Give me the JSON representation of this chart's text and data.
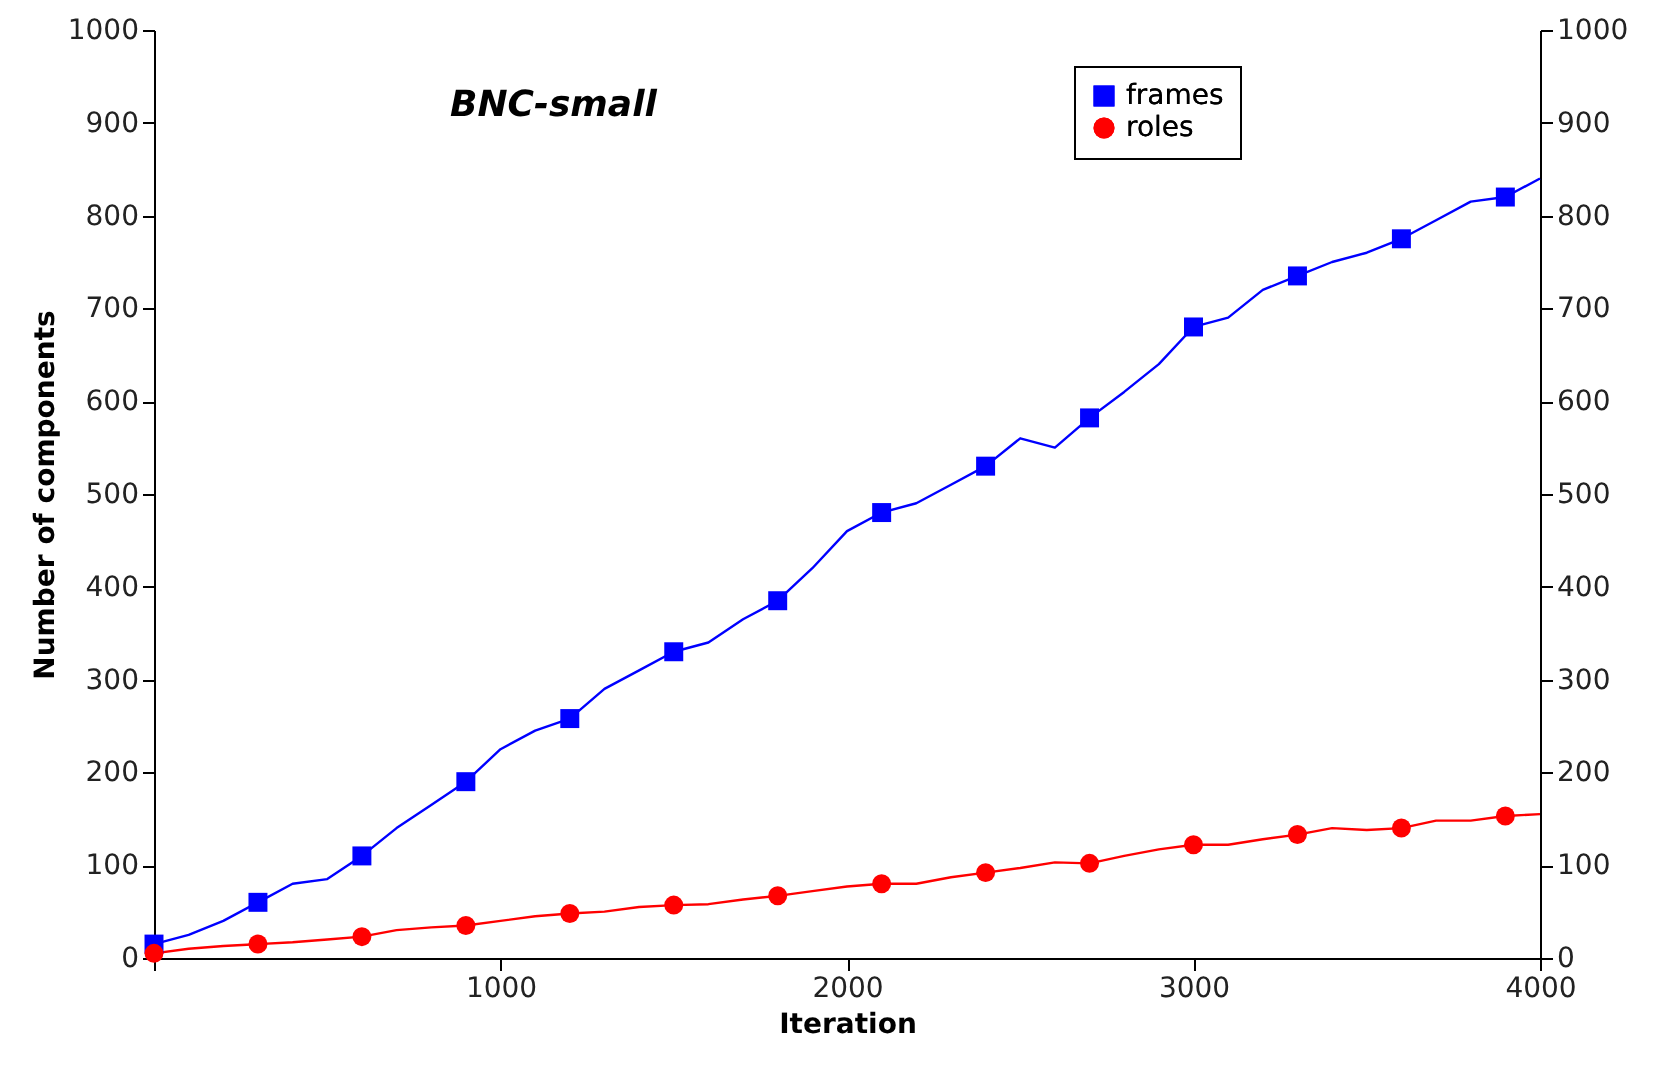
{
  "chart_data": {
    "type": "line",
    "title": "BNC-small",
    "xlabel": "Iteration",
    "ylabel": "Number of components",
    "xlim": [
      0,
      4000
    ],
    "xticks": [
      {
        "value": 0,
        "label": null
      },
      1000,
      2000,
      3000,
      4000
    ],
    "ylim": [
      0,
      1000
    ],
    "yticks": [
      0,
      100,
      200,
      300,
      400,
      500,
      600,
      700,
      800,
      900,
      1000
    ],
    "y2lim": [
      0,
      1000
    ],
    "y2ticks": [
      0,
      100,
      200,
      300,
      400,
      500,
      600,
      700,
      800,
      900,
      1000
    ],
    "grid": false,
    "legend": "top right",
    "line_style": "solid",
    "series": [
      {
        "name": "frames",
        "color": "#0000ff",
        "x": [
          0,
          100,
          200,
          300,
          400,
          500,
          600,
          700,
          800,
          900,
          1000,
          1100,
          1200,
          1300,
          1400,
          1500,
          1600,
          1700,
          1800,
          1900,
          2000,
          2100,
          2200,
          2300,
          2400,
          2500,
          2600,
          2700,
          2800,
          2900,
          3000,
          3100,
          3200,
          3300,
          3400,
          3500,
          3600,
          3700,
          3800,
          3900,
          4000
        ],
        "values": [
          15,
          25,
          40,
          60,
          80,
          85,
          110,
          140,
          165,
          190,
          225,
          245,
          258,
          290,
          310,
          330,
          340,
          365,
          385,
          420,
          460,
          480,
          490,
          510,
          530,
          560,
          550,
          582,
          610,
          640,
          680,
          690,
          720,
          735,
          750,
          760,
          775,
          795,
          815,
          820,
          840
        ]
      },
      {
        "name": "roles",
        "color": "#ff0000",
        "x": [
          0,
          100,
          200,
          300,
          400,
          500,
          600,
          700,
          800,
          900,
          1000,
          1100,
          1200,
          1300,
          1400,
          1500,
          1600,
          1700,
          1800,
          1900,
          2000,
          2100,
          2200,
          2300,
          2400,
          2500,
          2600,
          2700,
          2800,
          2900,
          3000,
          3100,
          3200,
          3300,
          3400,
          3500,
          3600,
          3700,
          3800,
          3900,
          4000
        ],
        "values": [
          5,
          10,
          13,
          15,
          17,
          20,
          23,
          30,
          33,
          35,
          40,
          45,
          48,
          50,
          55,
          57,
          58,
          63,
          67,
          72,
          77,
          80,
          80,
          87,
          92,
          97,
          103,
          102,
          110,
          117,
          122,
          122,
          128,
          133,
          140,
          138,
          140,
          148,
          148,
          153,
          155
        ]
      },
      {
        "type": "scatter",
        "color": "#0000ff",
        "marker": "square",
        "x": [
          0,
          300,
          600,
          900,
          1200,
          1500,
          1800,
          2100,
          2400,
          2700,
          3000,
          3300,
          3600,
          3900
        ],
        "values": [
          15,
          60,
          110,
          190,
          258,
          330,
          385,
          480,
          530,
          582,
          680,
          735,
          775,
          820
        ]
      },
      {
        "type": "scatter",
        "color": "#ff0000",
        "marker": "circle",
        "x": [
          0,
          300,
          600,
          900,
          1200,
          1500,
          1800,
          2100,
          2400,
          2700,
          3000,
          3300,
          3600,
          3900
        ],
        "values": [
          5,
          15,
          23,
          35,
          48,
          57,
          67,
          80,
          92,
          102,
          122,
          133,
          140,
          153
        ]
      }
    ]
  }
}
